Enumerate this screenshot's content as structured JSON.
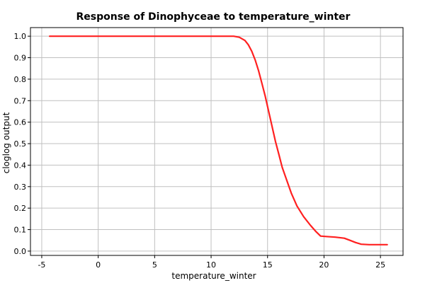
{
  "chart_data": {
    "type": "line",
    "title": "Response of Dinophyceae to temperature_winter",
    "xlabel": "temperature_winter",
    "ylabel": "cloglog output",
    "xlim": [
      -6,
      27
    ],
    "ylim": [
      -0.02,
      1.04
    ],
    "xticks": [
      -5,
      0,
      5,
      10,
      15,
      20,
      25
    ],
    "yticks": [
      0.0,
      0.1,
      0.2,
      0.3,
      0.4,
      0.5,
      0.6,
      0.7,
      0.8,
      0.9,
      1.0
    ],
    "grid": true,
    "series": [
      {
        "color": "#ff2020",
        "x": [
          -4.3,
          0,
          5,
          10,
          12,
          12.5,
          13,
          13.3,
          13.6,
          13.9,
          14.2,
          14.5,
          14.8,
          15.1,
          15.4,
          15.7,
          16.0,
          16.3,
          16.7,
          17.1,
          17.6,
          18.2,
          18.8,
          19.3,
          19.7,
          20.2,
          21.0,
          21.8,
          22.3,
          22.8,
          23.3,
          24.0,
          25.6
        ],
        "y": [
          1.0,
          1.0,
          1.0,
          1.0,
          1.0,
          0.995,
          0.98,
          0.96,
          0.93,
          0.89,
          0.84,
          0.78,
          0.72,
          0.65,
          0.58,
          0.51,
          0.45,
          0.39,
          0.33,
          0.27,
          0.21,
          0.16,
          0.12,
          0.09,
          0.07,
          0.068,
          0.065,
          0.06,
          0.05,
          0.04,
          0.032,
          0.03,
          0.03
        ]
      }
    ]
  }
}
